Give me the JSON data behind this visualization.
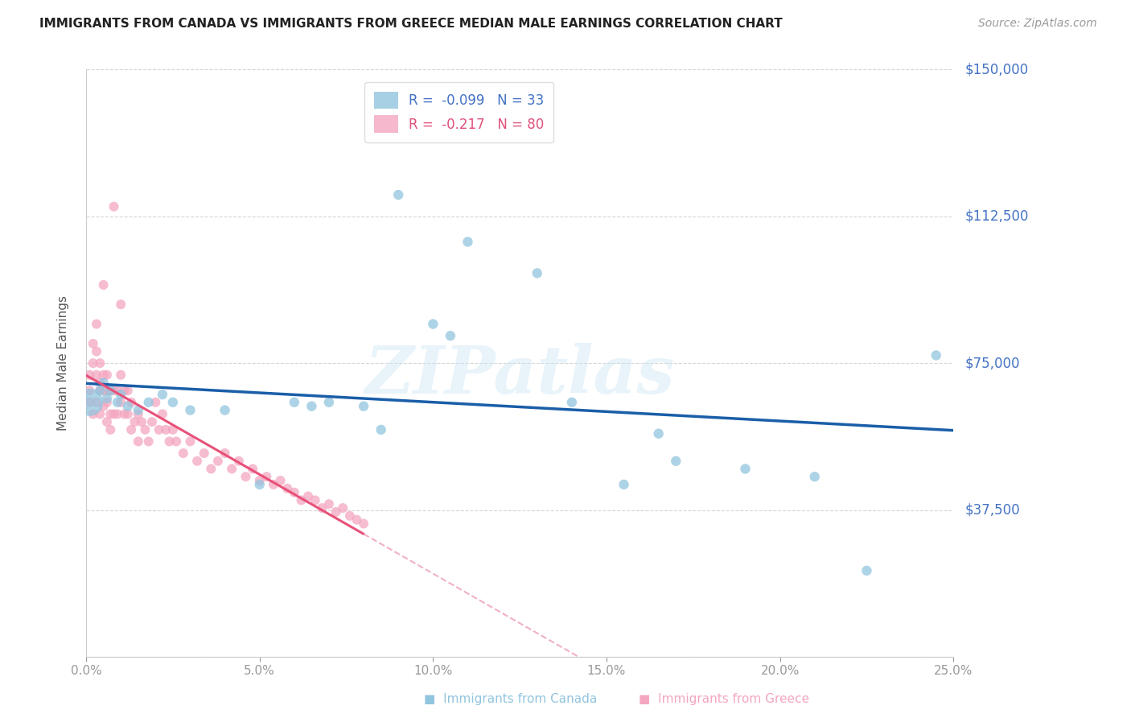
{
  "title": "IMMIGRANTS FROM CANADA VS IMMIGRANTS FROM GREECE MEDIAN MALE EARNINGS CORRELATION CHART",
  "source": "Source: ZipAtlas.com",
  "ylabel": "Median Male Earnings",
  "xlabel_ticks": [
    "0.0%",
    "5.0%",
    "10.0%",
    "15.0%",
    "20.0%",
    "25.0%"
  ],
  "xlabel_vals": [
    0.0,
    0.05,
    0.1,
    0.15,
    0.2,
    0.25
  ],
  "ylabel_ticks": [
    0,
    37500,
    75000,
    112500,
    150000
  ],
  "ylabel_labels": [
    "",
    "$37,500",
    "$75,000",
    "$112,500",
    "$150,000"
  ],
  "xlim": [
    0.0,
    0.25
  ],
  "ylim": [
    0,
    150000
  ],
  "canada_R": -0.099,
  "canada_N": 33,
  "greece_R": -0.217,
  "greece_N": 80,
  "color_canada": "#92c5de",
  "color_greece": "#f4a6c0",
  "trendline_canada_color": "#1a5ea8",
  "trendline_greece_solid_color": "#e8517a",
  "trendline_greece_dashed_color": "#f0b0c8",
  "watermark": "ZIPatlas",
  "canada_x": [
    0.001,
    0.004,
    0.005,
    0.006,
    0.007,
    0.009,
    0.01,
    0.012,
    0.015,
    0.018,
    0.022,
    0.025,
    0.03,
    0.04,
    0.05,
    0.06,
    0.065,
    0.07,
    0.08,
    0.085,
    0.09,
    0.1,
    0.105,
    0.11,
    0.13,
    0.14,
    0.155,
    0.165,
    0.17,
    0.19,
    0.21,
    0.225,
    0.245
  ],
  "canada_y": [
    65000,
    68000,
    70000,
    66000,
    68000,
    65000,
    67000,
    64000,
    63000,
    65000,
    67000,
    65000,
    63000,
    63000,
    44000,
    65000,
    64000,
    65000,
    64000,
    58000,
    118000,
    85000,
    82000,
    106000,
    98000,
    65000,
    44000,
    57000,
    50000,
    48000,
    46000,
    22000,
    77000
  ],
  "canada_sizes": [
    600,
    80,
    80,
    80,
    80,
    80,
    80,
    80,
    80,
    80,
    80,
    80,
    80,
    80,
    80,
    80,
    80,
    80,
    80,
    80,
    80,
    80,
    80,
    80,
    80,
    80,
    80,
    80,
    80,
    80,
    80,
    80,
    80
  ],
  "greece_x": [
    0.001,
    0.001,
    0.001,
    0.002,
    0.002,
    0.002,
    0.003,
    0.003,
    0.003,
    0.003,
    0.004,
    0.004,
    0.004,
    0.004,
    0.005,
    0.005,
    0.005,
    0.005,
    0.006,
    0.006,
    0.006,
    0.006,
    0.007,
    0.007,
    0.007,
    0.008,
    0.008,
    0.008,
    0.009,
    0.009,
    0.01,
    0.01,
    0.01,
    0.011,
    0.011,
    0.012,
    0.012,
    0.013,
    0.013,
    0.014,
    0.015,
    0.015,
    0.016,
    0.017,
    0.018,
    0.019,
    0.02,
    0.021,
    0.022,
    0.023,
    0.024,
    0.025,
    0.026,
    0.028,
    0.03,
    0.032,
    0.034,
    0.036,
    0.038,
    0.04,
    0.042,
    0.044,
    0.046,
    0.048,
    0.05,
    0.052,
    0.054,
    0.056,
    0.058,
    0.06,
    0.062,
    0.064,
    0.066,
    0.068,
    0.07,
    0.072,
    0.074,
    0.076,
    0.078,
    0.08
  ],
  "greece_y": [
    68000,
    72000,
    65000,
    80000,
    75000,
    62000,
    85000,
    78000,
    72000,
    65000,
    70000,
    75000,
    68000,
    62000,
    95000,
    72000,
    68000,
    64000,
    68000,
    72000,
    65000,
    60000,
    68000,
    62000,
    58000,
    115000,
    68000,
    62000,
    68000,
    62000,
    90000,
    72000,
    65000,
    68000,
    62000,
    68000,
    62000,
    58000,
    65000,
    60000,
    62000,
    55000,
    60000,
    58000,
    55000,
    60000,
    65000,
    58000,
    62000,
    58000,
    55000,
    58000,
    55000,
    52000,
    55000,
    50000,
    52000,
    48000,
    50000,
    52000,
    48000,
    50000,
    46000,
    48000,
    45000,
    46000,
    44000,
    45000,
    43000,
    42000,
    40000,
    41000,
    40000,
    38000,
    39000,
    37000,
    38000,
    36000,
    35000,
    34000
  ]
}
